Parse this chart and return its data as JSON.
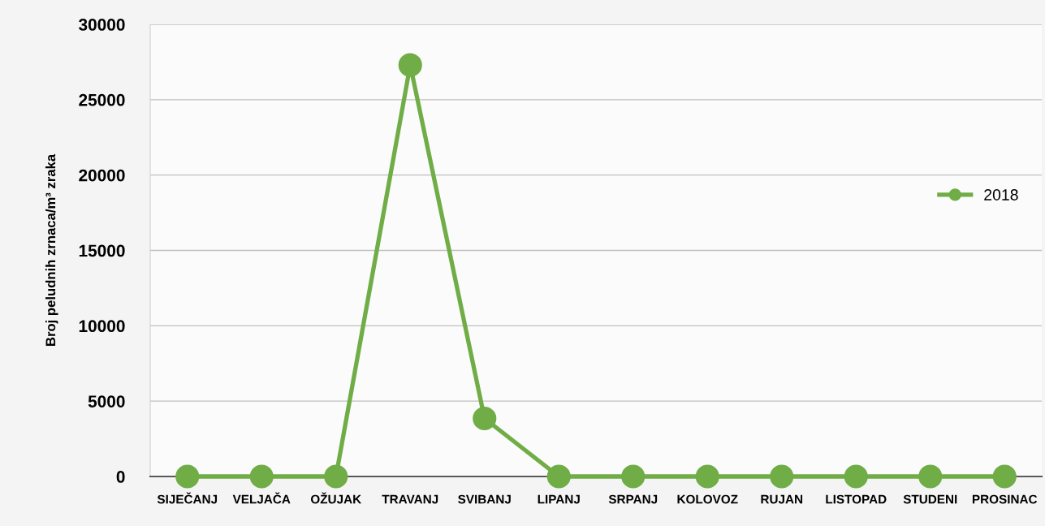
{
  "chart_data": {
    "type": "line",
    "ylabel": "Broj peludnih zrnaca/m³ zraka",
    "categories": [
      "SIJEČANJ",
      "VELJAČA",
      "OŽUJAK",
      "TRAVANJ",
      "SVIBANJ",
      "LIPANJ",
      "SRPANJ",
      "KOLOVOZ",
      "RUJAN",
      "LISTOPAD",
      "STUDENI",
      "PROSINAC"
    ],
    "series": [
      {
        "name": "2018",
        "color": "#70ad47",
        "values": [
          0,
          0,
          0,
          27300,
          3850,
          0,
          0,
          0,
          0,
          0,
          0,
          0
        ]
      }
    ],
    "ylim": [
      0,
      30000
    ],
    "yticks": [
      0,
      5000,
      10000,
      15000,
      20000,
      25000,
      30000
    ],
    "grid": "y",
    "legend": "right",
    "marker": "circle",
    "line_style": "solid"
  }
}
